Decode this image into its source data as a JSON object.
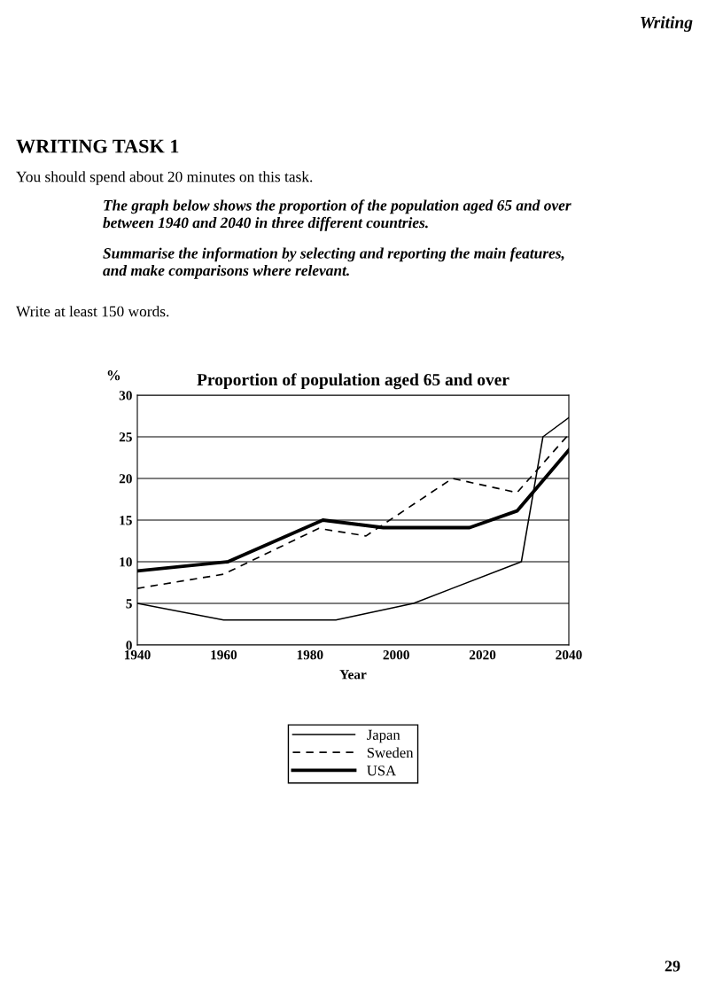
{
  "chart_data": {
    "type": "line",
    "title": "Proportion of population aged 65 and over",
    "xlabel": "Year",
    "ylabel": "%",
    "annotations": [
      "Writing",
      "WRITING TASK 1",
      "You should spend about 20 minutes on this task.",
      "The graph below shows the proportion of the population aged 65 and over\nbetween 1940 and 2040 in three different countries.",
      "Summarise the information by selecting and reporting the main features,\nand make comparisons where relevant.",
      "Write at least 150 words.",
      "29"
    ],
    "series": [
      {
        "name": "Japan",
        "color": "#000000",
        "line_style": "solid",
        "x": [
          1940,
          1960,
          1986,
          2004,
          2029,
          2034,
          2040
        ],
        "values": [
          5,
          3,
          3,
          5,
          10,
          25,
          27.3
        ]
      },
      {
        "name": "Sweden",
        "color": "#000000",
        "line_style": "dashed",
        "x": [
          1940,
          1960,
          1982,
          1993,
          2013,
          2028,
          2040
        ],
        "values": [
          6.8,
          8.5,
          14,
          13.1,
          20,
          18.3,
          25.3
        ]
      },
      {
        "name": "USA",
        "color": "#000000",
        "line_style": "solid",
        "x": [
          1940,
          1961,
          1983,
          1997,
          2017,
          2028,
          2040
        ],
        "values": [
          8.9,
          10,
          15,
          14.1,
          14.1,
          16.1,
          23.4
        ]
      }
    ],
    "xlim": [
      1940,
      2040
    ],
    "xticks": [
      1940,
      1960,
      1980,
      2000,
      2020,
      2040
    ],
    "ylim": [
      0,
      30
    ],
    "yticks": [
      0,
      5,
      10,
      15,
      20,
      25,
      30
    ],
    "grid": "y",
    "legend": "bottom",
    "marker": "none"
  }
}
